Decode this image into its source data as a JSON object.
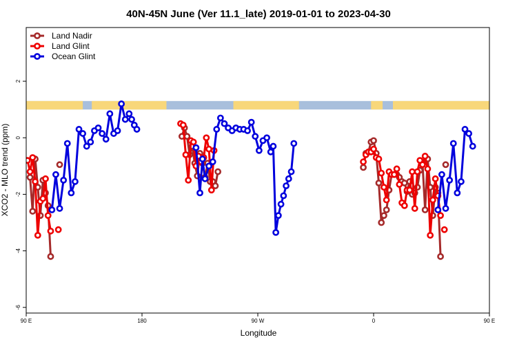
{
  "chart_data": {
    "type": "line",
    "title": "40N-45N June (Ver 11.1_late)   2019-01-01 to 2023-04-30",
    "xlabel": "Longitude",
    "ylabel": "XCO2 - MLO trend (ppm)",
    "xlim": [
      90,
      450
    ],
    "ylim": [
      -6.2,
      3.9
    ],
    "x_ticks": [
      {
        "value": 90,
        "label": "90 E"
      },
      {
        "value": 180,
        "label": "180"
      },
      {
        "value": 270,
        "label": "90 W"
      },
      {
        "value": 360,
        "label": "0"
      },
      {
        "value": 450,
        "label": "90 E"
      },
      {
        "value": 540,
        "label": "180"
      }
    ],
    "y_ticks": [
      {
        "value": 2,
        "label": "2"
      },
      {
        "value": 0,
        "label": "0"
      },
      {
        "value": -2,
        "label": "-2"
      },
      {
        "value": -4,
        "label": "-4"
      },
      {
        "value": -6,
        "label": "-6"
      }
    ],
    "legend_position": "top-left",
    "land_ocean_strip": {
      "y_range": [
        1.0,
        1.3
      ],
      "land_color": "#f8d77a",
      "ocean_color": "#a8bfdc",
      "land_ranges": [
        [
          90,
          134
        ],
        [
          141,
          199
        ],
        [
          251,
          302
        ],
        [
          358,
          367
        ],
        [
          375,
          480
        ],
        [
          493,
          505
        ],
        [
          509,
          535
        ]
      ]
    },
    "series": [
      {
        "name": "Land Nadir",
        "color": "#a52a2a",
        "segments": [
          [
            [
              93,
              -1.4
            ],
            [
              95,
              -2.6
            ],
            [
              97,
              -0.75
            ],
            [
              99,
              -1.75
            ],
            [
              101,
              -2.75
            ],
            [
              103,
              -1.5
            ],
            [
              105,
              -1.95
            ],
            [
              107,
              -2.4
            ],
            [
              109,
              -4.2
            ]
          ],
          [
            [
              116,
              -0.95
            ]
          ],
          [
            [
              211,
              0.05
            ],
            [
              213,
              0.35
            ],
            [
              215,
              0.05
            ],
            [
              217,
              -0.6
            ],
            [
              219,
              -0.3
            ],
            [
              221,
              -0.9
            ],
            [
              223,
              -1.35
            ],
            [
              225,
              -0.55
            ],
            [
              227,
              -0.9
            ],
            [
              229,
              -1.4
            ],
            [
              231,
              -0.9
            ],
            [
              233,
              -1.55
            ],
            [
              235,
              -1.55
            ],
            [
              237,
              -1.7
            ],
            [
              239,
              -1.2
            ]
          ],
          [
            [
              352,
              -1.05
            ],
            [
              354,
              -0.55
            ],
            [
              356,
              -0.5
            ],
            [
              358,
              -0.15
            ],
            [
              360,
              -0.1
            ],
            [
              362,
              -0.55
            ],
            [
              364,
              -1.6
            ],
            [
              366,
              -3.0
            ],
            [
              368,
              -2.75
            ],
            [
              370,
              -2.55
            ],
            [
              372,
              -1.85
            ],
            [
              374,
              -1.3
            ],
            [
              376,
              -1.3
            ],
            [
              378,
              -1.3
            ],
            [
              380,
              -1.4
            ],
            [
              382,
              -1.55
            ],
            [
              384,
              -1.6
            ],
            [
              386,
              -1.9
            ],
            [
              388,
              -1.55
            ],
            [
              390,
              -2.0
            ],
            [
              392,
              -1.95
            ],
            [
              394,
              -1.75
            ],
            [
              396,
              -1.15
            ],
            [
              398,
              -0.9
            ],
            [
              400,
              -2.55
            ],
            [
              402,
              -0.75
            ],
            [
              404,
              -1.75
            ],
            [
              406,
              -2.75
            ],
            [
              408,
              -1.75
            ],
            [
              410,
              -1.95
            ],
            [
              412,
              -4.2
            ]
          ],
          [
            [
              416,
              -0.95
            ]
          ]
        ]
      },
      {
        "name": "Land Glint",
        "color": "#ee0000",
        "segments": [
          [
            [
              91,
              -0.8
            ],
            [
              93,
              -1.2
            ],
            [
              95,
              -0.7
            ],
            [
              97,
              -1.55
            ],
            [
              99,
              -3.45
            ],
            [
              101,
              -2.25
            ],
            [
              103,
              -2.15
            ],
            [
              105,
              -1.45
            ],
            [
              107,
              -2.75
            ],
            [
              109,
              -3.3
            ]
          ],
          [
            [
              115,
              -3.25
            ]
          ],
          [
            [
              210,
              0.5
            ],
            [
              212,
              0.45
            ],
            [
              214,
              -0.6
            ],
            [
              216,
              -1.5
            ],
            [
              218,
              -0.1
            ],
            [
              220,
              -0.15
            ],
            [
              222,
              -1.0
            ],
            [
              224,
              -0.65
            ],
            [
              226,
              -0.85
            ],
            [
              228,
              -0.7
            ],
            [
              230,
              0.0
            ],
            [
              232,
              -0.4
            ],
            [
              234,
              -1.85
            ],
            [
              236,
              -0.45
            ]
          ],
          [
            [
              352,
              -0.85
            ],
            [
              354,
              -0.6
            ],
            [
              356,
              -0.5
            ],
            [
              358,
              -0.5
            ],
            [
              360,
              -0.4
            ],
            [
              362,
              -0.7
            ],
            [
              364,
              -0.75
            ],
            [
              366,
              -1.25
            ],
            [
              368,
              -1.75
            ],
            [
              370,
              -2.2
            ],
            [
              372,
              -1.2
            ],
            [
              374,
              -1.3
            ],
            [
              376,
              -1.3
            ],
            [
              378,
              -1.1
            ],
            [
              380,
              -1.65
            ],
            [
              382,
              -2.3
            ],
            [
              384,
              -2.4
            ],
            [
              386,
              -1.85
            ],
            [
              388,
              -1.85
            ],
            [
              390,
              -1.2
            ],
            [
              392,
              -2.5
            ],
            [
              394,
              -1.2
            ],
            [
              396,
              -0.8
            ],
            [
              398,
              -0.95
            ],
            [
              400,
              -0.65
            ],
            [
              402,
              -1.1
            ],
            [
              404,
              -3.45
            ],
            [
              406,
              -2.2
            ],
            [
              408,
              -1.45
            ],
            [
              410,
              -2.05
            ],
            [
              412,
              -2.75
            ]
          ],
          [
            [
              415,
              -3.25
            ]
          ]
        ]
      },
      {
        "name": "Ocean Glint",
        "color": "#0000dd",
        "segments": [
          [
            [
              110,
              -2.55
            ],
            [
              113,
              -1.3
            ],
            [
              116,
              -2.5
            ],
            [
              119,
              -1.5
            ],
            [
              122,
              -0.2
            ],
            [
              125,
              -1.95
            ],
            [
              128,
              -1.55
            ],
            [
              131,
              0.3
            ],
            [
              134,
              0.15
            ],
            [
              137,
              -0.3
            ],
            [
              140,
              -0.15
            ],
            [
              143,
              0.25
            ],
            [
              146,
              0.35
            ],
            [
              149,
              0.15
            ],
            [
              152,
              -0.05
            ],
            [
              155,
              0.85
            ],
            [
              158,
              0.15
            ],
            [
              161,
              0.25
            ],
            [
              164,
              1.2
            ],
            [
              167,
              0.65
            ],
            [
              170,
              0.85
            ],
            [
              172,
              0.65
            ],
            [
              174,
              0.45
            ],
            [
              176,
              0.3
            ]
          ],
          [
            [
              222,
              -0.35
            ],
            [
              225,
              -1.95
            ],
            [
              227,
              -0.75
            ],
            [
              229,
              -1.45
            ],
            [
              232,
              -1.0
            ],
            [
              235,
              -0.85
            ],
            [
              238,
              0.3
            ],
            [
              241,
              0.7
            ],
            [
              244,
              0.5
            ],
            [
              247,
              0.35
            ],
            [
              250,
              0.25
            ],
            [
              253,
              0.35
            ],
            [
              256,
              0.3
            ],
            [
              259,
              0.3
            ],
            [
              262,
              0.25
            ],
            [
              265,
              0.55
            ],
            [
              268,
              0.05
            ],
            [
              271,
              -0.45
            ],
            [
              274,
              -0.1
            ],
            [
              277,
              0.0
            ],
            [
              280,
              -0.5
            ],
            [
              282,
              -0.3
            ],
            [
              284,
              -3.35
            ],
            [
              286,
              -2.75
            ],
            [
              288,
              -2.35
            ],
            [
              290,
              -2.05
            ],
            [
              292,
              -1.7
            ],
            [
              294,
              -1.45
            ],
            [
              296,
              -1.2
            ],
            [
              298,
              -0.2
            ]
          ],
          [
            [
              410,
              -2.55
            ],
            [
              413,
              -1.3
            ],
            [
              416,
              -2.5
            ],
            [
              419,
              -1.5
            ],
            [
              422,
              -0.2
            ],
            [
              425,
              -1.95
            ],
            [
              428,
              -1.55
            ],
            [
              431,
              0.3
            ],
            [
              434,
              0.15
            ],
            [
              437,
              -0.3
            ]
          ]
        ]
      }
    ]
  }
}
